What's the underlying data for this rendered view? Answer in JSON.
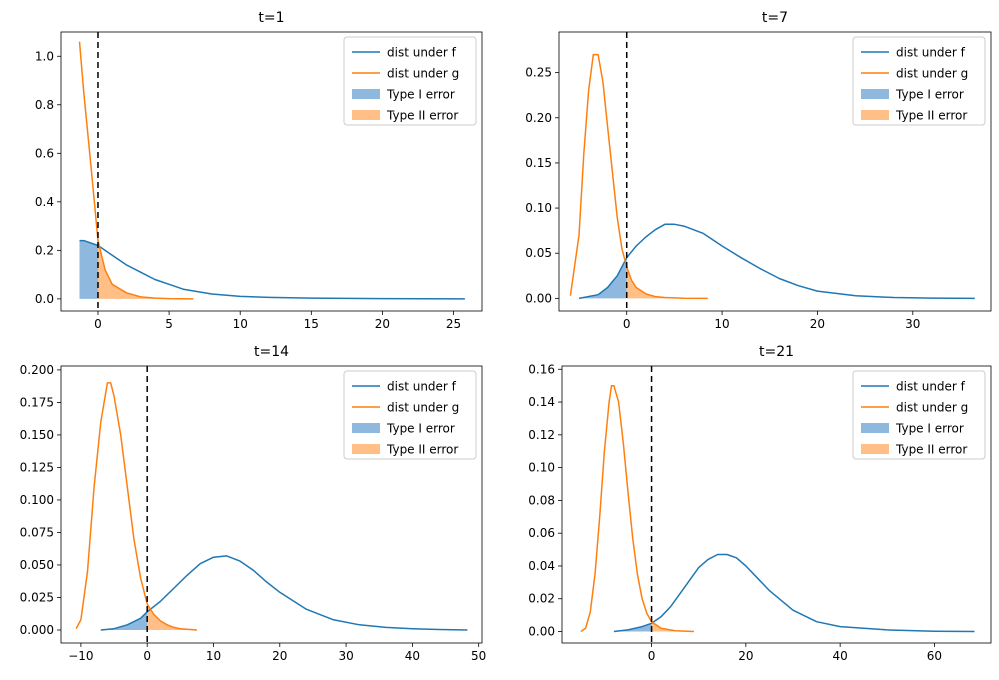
{
  "legend_labels": {
    "f": "dist under f",
    "g": "dist under g",
    "type1": "Type I error",
    "type2": "Type II error"
  },
  "colors": {
    "f": "#1f77b4",
    "g": "#ff7f0e",
    "type1_fill": "#8fb8de",
    "type2_fill": "#ffbf86",
    "threshold": "#000000"
  },
  "chart_data": [
    {
      "type": "line",
      "title": "t=1",
      "xlim": [
        -2.6,
        27.0
      ],
      "ylim": [
        -0.05,
        1.1
      ],
      "xticks": [
        0,
        5,
        10,
        15,
        20,
        25
      ],
      "xtick_labels": [
        "0",
        "5",
        "10",
        "15",
        "20",
        "25"
      ],
      "yticks": [
        0.0,
        0.2,
        0.4,
        0.6,
        0.8,
        1.0
      ],
      "ytick_labels": [
        "0.0",
        "0.2",
        "0.4",
        "0.6",
        "0.8",
        "1.0"
      ],
      "threshold_x": 0,
      "legend_position": "top-right",
      "series": [
        {
          "name": "dist under f",
          "x": [
            -1.3,
            -1,
            0,
            1,
            2,
            3,
            4,
            5,
            6,
            8,
            10,
            12,
            15,
            20,
            25.8
          ],
          "y": [
            0.24,
            0.24,
            0.22,
            0.18,
            0.14,
            0.11,
            0.08,
            0.06,
            0.04,
            0.02,
            0.01,
            0.006,
            0.003,
            0.001,
            0.0
          ]
        },
        {
          "name": "dist under g",
          "x": [
            -1.3,
            -1,
            -0.5,
            0,
            0.5,
            1,
            2,
            3,
            4,
            5,
            6.7
          ],
          "y": [
            1.06,
            0.85,
            0.55,
            0.24,
            0.12,
            0.06,
            0.025,
            0.008,
            0.003,
            0.001,
            0.0
          ]
        }
      ]
    },
    {
      "type": "line",
      "title": "t=7",
      "xlim": [
        -7.1,
        38.2
      ],
      "ylim": [
        -0.014,
        0.295
      ],
      "xticks": [
        0,
        10,
        20,
        30
      ],
      "xtick_labels": [
        "0",
        "10",
        "20",
        "30"
      ],
      "yticks": [
        0.0,
        0.05,
        0.1,
        0.15,
        0.2,
        0.25
      ],
      "ytick_labels": [
        "0.00",
        "0.05",
        "0.10",
        "0.15",
        "0.20",
        "0.25"
      ],
      "threshold_x": 0,
      "legend_position": "top-right",
      "series": [
        {
          "name": "dist under f",
          "x": [
            -5,
            -3,
            -2,
            -1,
            0,
            1,
            2,
            3,
            4,
            5,
            6,
            8,
            10,
            12,
            14,
            16,
            18,
            20,
            24,
            28,
            32,
            36.5
          ],
          "y": [
            0.0,
            0.004,
            0.012,
            0.025,
            0.045,
            0.058,
            0.068,
            0.076,
            0.082,
            0.082,
            0.08,
            0.072,
            0.058,
            0.045,
            0.033,
            0.022,
            0.014,
            0.008,
            0.003,
            0.001,
            0.0003,
            0.0
          ]
        },
        {
          "name": "dist under g",
          "x": [
            -5.9,
            -5,
            -4.5,
            -4,
            -3.5,
            -3,
            -2.5,
            -2,
            -1.5,
            -1,
            -0.5,
            0,
            0.5,
            1,
            2,
            3,
            4,
            6,
            8.5
          ],
          "y": [
            0.003,
            0.07,
            0.16,
            0.23,
            0.27,
            0.27,
            0.24,
            0.19,
            0.14,
            0.09,
            0.055,
            0.035,
            0.02,
            0.012,
            0.005,
            0.002,
            0.001,
            0.0002,
            0.0
          ]
        }
      ]
    },
    {
      "type": "line",
      "title": "t=14",
      "xlim": [
        -13.0,
        50.5
      ],
      "ylim": [
        -0.01,
        0.203
      ],
      "xticks": [
        -10,
        0,
        10,
        20,
        30,
        40,
        50
      ],
      "xtick_labels": [
        "−10",
        "0",
        "10",
        "20",
        "30",
        "40",
        "50"
      ],
      "yticks": [
        0.0,
        0.025,
        0.05,
        0.075,
        0.1,
        0.125,
        0.15,
        0.175,
        0.2
      ],
      "ytick_labels": [
        "0.000",
        "0.025",
        "0.050",
        "0.075",
        "0.100",
        "0.125",
        "0.150",
        "0.175",
        "0.200"
      ],
      "threshold_x": 0,
      "legend_position": "top-right",
      "series": [
        {
          "name": "dist under f",
          "x": [
            -7,
            -5,
            -3,
            -1,
            0,
            2,
            4,
            6,
            8,
            10,
            12,
            14,
            16,
            18,
            20,
            24,
            28,
            32,
            36,
            40,
            44,
            48.3
          ],
          "y": [
            0.0,
            0.001,
            0.004,
            0.009,
            0.014,
            0.022,
            0.032,
            0.042,
            0.051,
            0.056,
            0.057,
            0.053,
            0.046,
            0.037,
            0.029,
            0.016,
            0.008,
            0.004,
            0.002,
            0.001,
            0.0004,
            0.0
          ]
        },
        {
          "name": "dist under g",
          "x": [
            -10.7,
            -10,
            -9,
            -8,
            -7,
            -6,
            -5.5,
            -5,
            -4,
            -3,
            -2,
            -1,
            0,
            1,
            2,
            3,
            4,
            5,
            7.5
          ],
          "y": [
            0.001,
            0.008,
            0.045,
            0.11,
            0.16,
            0.19,
            0.19,
            0.18,
            0.15,
            0.11,
            0.07,
            0.04,
            0.02,
            0.012,
            0.007,
            0.004,
            0.002,
            0.001,
            0.0
          ]
        }
      ]
    },
    {
      "type": "line",
      "title": "t=21",
      "xlim": [
        -19.0,
        72.0
      ],
      "ylim": [
        -0.007,
        0.162
      ],
      "xticks": [
        0,
        20,
        40,
        60
      ],
      "xtick_labels": [
        "0",
        "20",
        "40",
        "60"
      ],
      "yticks": [
        0.0,
        0.02,
        0.04,
        0.06,
        0.08,
        0.1,
        0.12,
        0.14,
        0.16
      ],
      "ytick_labels": [
        "0.00",
        "0.02",
        "0.04",
        "0.06",
        "0.08",
        "0.10",
        "0.12",
        "0.14",
        "0.16"
      ],
      "threshold_x": 0,
      "legend_position": "top-right",
      "series": [
        {
          "name": "dist under f",
          "x": [
            -8,
            -5,
            -2,
            0,
            2,
            4,
            6,
            8,
            10,
            12,
            14,
            16,
            18,
            20,
            22,
            25,
            30,
            35,
            40,
            50,
            60,
            68.5
          ],
          "y": [
            0.0,
            0.001,
            0.003,
            0.005,
            0.009,
            0.015,
            0.023,
            0.031,
            0.039,
            0.044,
            0.047,
            0.047,
            0.045,
            0.04,
            0.034,
            0.025,
            0.013,
            0.006,
            0.003,
            0.001,
            0.0002,
            0.0
          ]
        },
        {
          "name": "dist under g",
          "x": [
            -15,
            -14,
            -13,
            -12,
            -11,
            -10,
            -9,
            -8.5,
            -8,
            -7,
            -6,
            -5,
            -4,
            -3,
            -2,
            -1,
            0,
            2,
            5,
            9
          ],
          "y": [
            0.0,
            0.002,
            0.012,
            0.035,
            0.07,
            0.11,
            0.14,
            0.15,
            0.15,
            0.14,
            0.115,
            0.085,
            0.057,
            0.035,
            0.02,
            0.011,
            0.006,
            0.002,
            0.0005,
            0.0
          ]
        }
      ]
    }
  ]
}
